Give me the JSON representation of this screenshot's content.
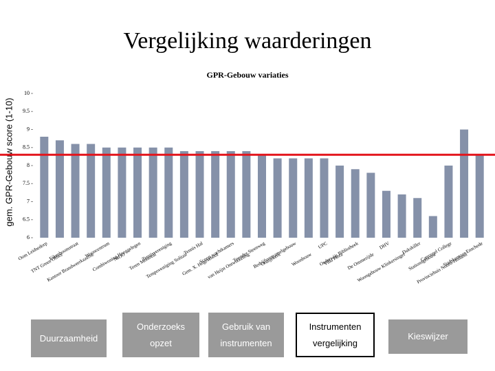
{
  "slide_title": "Vergelijking waarderingen",
  "chart_data": {
    "type": "bar",
    "title": "GPR-Gebouw variaties",
    "y_label": "gem. GPR-Gebouw score (1-10)",
    "categories": [
      "Oom Leidsedorp",
      "TNT Green Office",
      "Eikenboomstraat",
      "Kantoor Brandweerkazerne",
      "Wooncentrum",
      "NIOO",
      "Combiwoning Hooggelegen",
      "Toren Montreal",
      "Tennisvereniging",
      "Tempovestiging Solitair",
      "Tennis Hal",
      "Gem. X. Hogeschool",
      "Scoop wachtkamers",
      "van Heijst Ontwikkeling",
      "Toonder Steenweg",
      "Oranjekerk",
      "Bedrijfsverzamelgebouw",
      "Woonbouw",
      "UPC",
      "Villa Flora",
      "Onderwijs Bibliotheek",
      "De Ommezijde",
      "DHV",
      "Woongebouw Klinkersingel",
      "Dakskiller",
      "Stationsgebouw",
      "Carrousel College",
      "Provinciehuis Noord-Holland",
      "Stadskantoor Enschede"
    ],
    "values": [
      8.8,
      8.7,
      8.6,
      8.6,
      8.5,
      8.5,
      8.5,
      8.5,
      8.5,
      8.4,
      8.4,
      8.4,
      8.4,
      8.4,
      8.3,
      8.2,
      8.2,
      8.2,
      8.2,
      8.0,
      7.9,
      7.8,
      7.3,
      7.2,
      7.1,
      6.6,
      8.0,
      9.0,
      8.3
    ],
    "color": "#8591a9",
    "reference_value": 8.3,
    "reference_color": "#e3141b",
    "ylim": [
      6,
      10
    ],
    "yticks": [
      6,
      6.5,
      7,
      7.5,
      8,
      8.5,
      9,
      9.5,
      10
    ]
  },
  "nav": [
    [
      "Duurzaamheid"
    ],
    [
      "Onderzoeks",
      "opzet"
    ],
    [
      "Gebruik van",
      "instrumenten"
    ],
    [
      "Instrumenten",
      "vergelijking"
    ],
    [
      "Kieswijzer"
    ]
  ]
}
